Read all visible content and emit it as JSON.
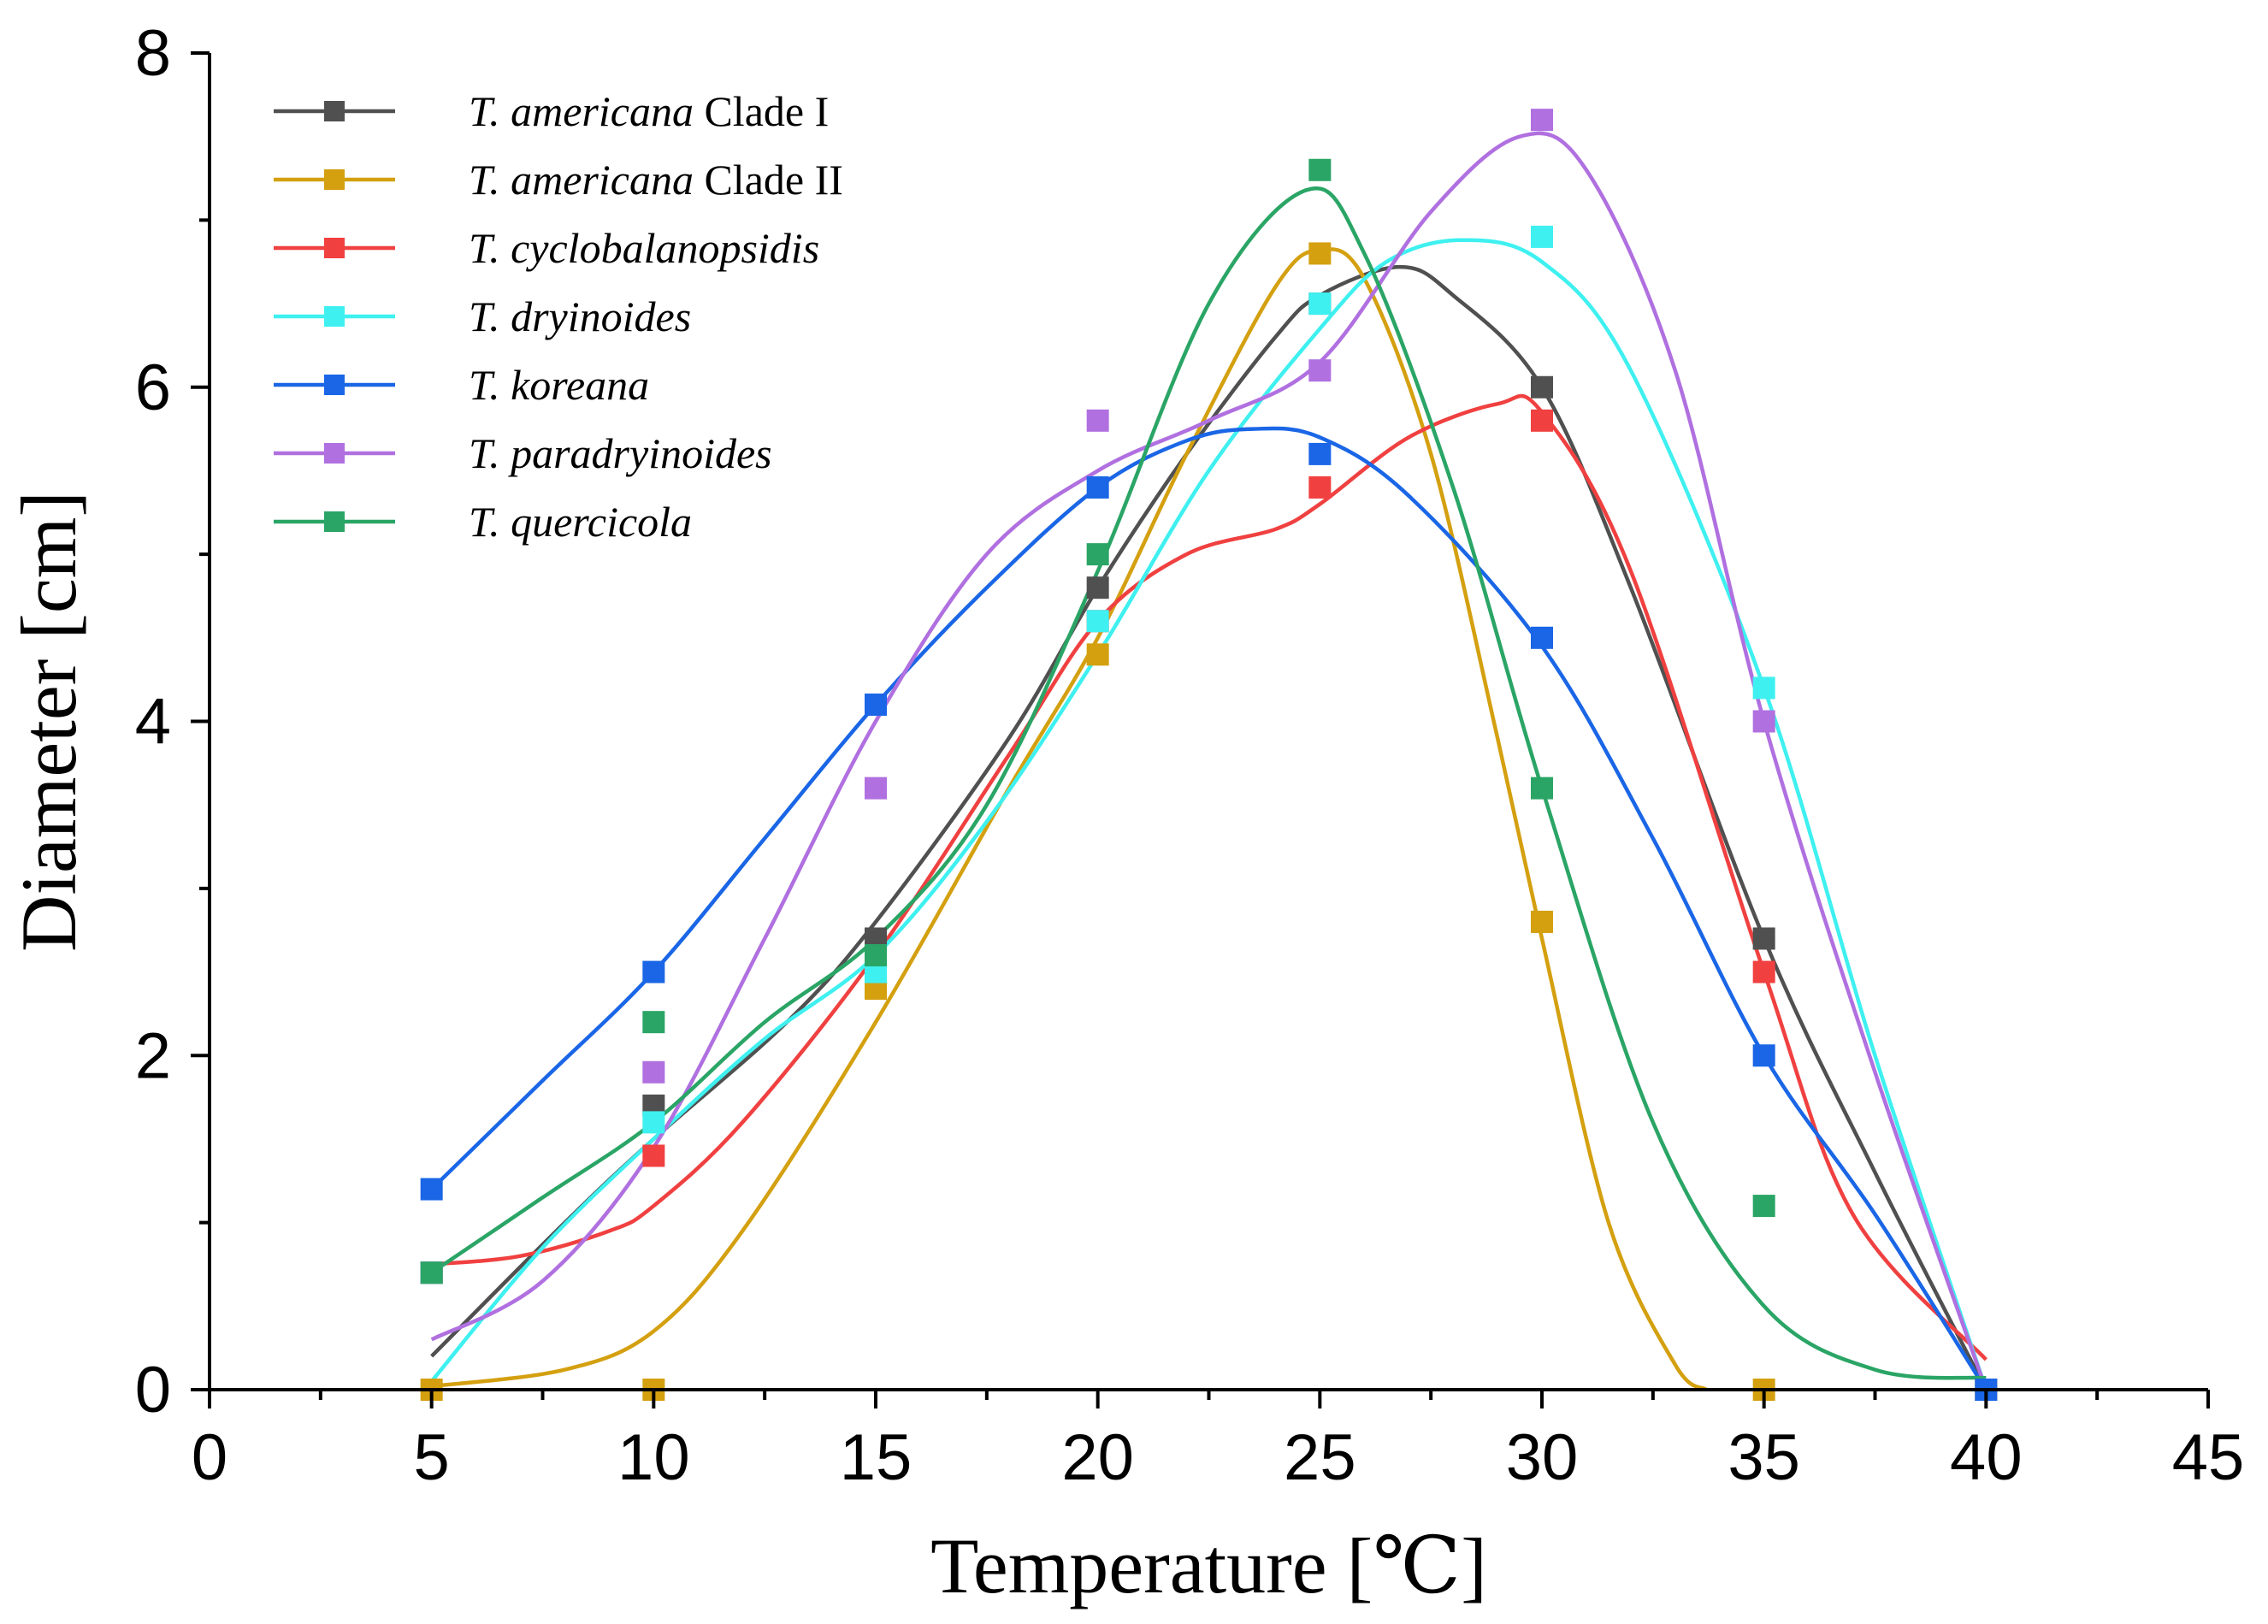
{
  "chart_data": {
    "type": "scatter",
    "title": "",
    "xlabel": "Temperature [℃]",
    "ylabel": "Diameter [cm]",
    "xlim": [
      0,
      45
    ],
    "ylim": [
      0,
      8
    ],
    "xticks": [
      0,
      5,
      10,
      15,
      20,
      25,
      30,
      35,
      40,
      45
    ],
    "yticks": [
      0,
      2,
      4,
      6,
      8
    ],
    "x_tick_labels": [
      "0",
      "5",
      "10",
      "15",
      "20",
      "25",
      "30",
      "35",
      "40",
      "45"
    ],
    "y_tick_labels": [
      "0",
      "2",
      "4",
      "6",
      "8"
    ],
    "legend_position": "top-left",
    "fit": "smooth curve through points (non-linear fit)",
    "series": [
      {
        "name": "T. americana Clade I",
        "species": "T. americana",
        "suffix": " Clade I",
        "color": "#505050",
        "x": [
          5,
          10,
          15,
          20,
          25,
          30,
          35,
          40
        ],
        "values": [
          0.7,
          1.7,
          2.7,
          4.8,
          6.5,
          6.0,
          2.7,
          0.0
        ],
        "fit_x": [
          5,
          8,
          10,
          13,
          15,
          18,
          20,
          22,
          24,
          25,
          26.8,
          28,
          30,
          32,
          35,
          37.5,
          40
        ],
        "fit_y": [
          0.2,
          1.0,
          1.5,
          2.2,
          2.8,
          3.9,
          4.8,
          5.6,
          6.3,
          6.55,
          6.72,
          6.55,
          6.0,
          4.8,
          2.7,
          1.3,
          0.0
        ]
      },
      {
        "name": "T. americana Clade II",
        "species": "T. americana",
        "suffix": " Clade II",
        "color": "#d4a010",
        "x": [
          5,
          10,
          15,
          20,
          25,
          30,
          35,
          40
        ],
        "values": [
          0.0,
          0.0,
          2.4,
          4.4,
          6.8,
          2.8,
          0.0,
          0.0
        ],
        "fit_x": [
          5,
          8,
          10,
          12,
          15,
          18,
          20,
          22,
          24,
          25,
          26,
          27.5,
          29,
          30,
          31.5,
          33,
          33.7
        ],
        "fit_y": [
          0.02,
          0.12,
          0.35,
          0.95,
          2.2,
          3.6,
          4.5,
          5.6,
          6.6,
          6.82,
          6.65,
          5.6,
          3.9,
          2.7,
          1.0,
          0.15,
          0.0
        ]
      },
      {
        "name": "T. cyclobalanopsidis",
        "species": "T. cyclobalanopsidis",
        "suffix": "",
        "color": "#f04040",
        "x": [
          5,
          10,
          15,
          20,
          25,
          30,
          35
        ],
        "values": [
          0.7,
          1.4,
          2.5,
          4.6,
          5.4,
          5.8,
          2.5
        ],
        "fit_x": [
          5,
          7,
          9,
          10,
          12,
          15,
          18,
          20,
          22,
          24,
          25,
          27,
          29,
          30,
          32,
          35,
          37,
          40
        ],
        "fit_y": [
          0.75,
          0.8,
          0.95,
          1.1,
          1.6,
          2.6,
          3.8,
          4.6,
          5.0,
          5.15,
          5.3,
          5.7,
          5.9,
          5.85,
          4.9,
          2.5,
          1.05,
          0.18
        ]
      },
      {
        "name": "T. dryinoides",
        "species": "T. dryinoides",
        "suffix": "",
        "color": "#3ff0f0",
        "x": [
          5,
          10,
          15,
          20,
          25,
          30,
          35
        ],
        "values": [
          0.7,
          1.6,
          2.5,
          4.6,
          6.5,
          6.9,
          4.2
        ],
        "fit_x": [
          5,
          7.5,
          10,
          12.5,
          15,
          17.5,
          20,
          22.5,
          25,
          26.5,
          28.2,
          30,
          32,
          35,
          37.5,
          40
        ],
        "fit_y": [
          0.05,
          0.85,
          1.5,
          2.1,
          2.6,
          3.4,
          4.4,
          5.5,
          6.35,
          6.75,
          6.88,
          6.75,
          6.1,
          4.2,
          2.0,
          0.0
        ]
      },
      {
        "name": "T. koreana",
        "species": "T. koreana",
        "suffix": "",
        "color": "#1a66e6",
        "x": [
          5,
          10,
          15,
          20,
          25,
          30,
          35,
          40
        ],
        "values": [
          1.2,
          2.5,
          4.1,
          5.4,
          5.6,
          4.5,
          2.0,
          0.0
        ],
        "fit_x": [
          5,
          7.5,
          10,
          12.5,
          15,
          17.5,
          20,
          22,
          23.5,
          25,
          27,
          30,
          32.5,
          35,
          37.5,
          40
        ],
        "fit_y": [
          1.2,
          1.85,
          2.5,
          3.3,
          4.1,
          4.8,
          5.4,
          5.68,
          5.75,
          5.7,
          5.35,
          4.45,
          3.3,
          2.0,
          1.05,
          0.0
        ]
      },
      {
        "name": "T. paradryinoides",
        "species": "T. paradryinoides",
        "suffix": "",
        "color": "#b070e0",
        "x": [
          5,
          10,
          15,
          20,
          25,
          30,
          35
        ],
        "values": [
          0.7,
          1.9,
          3.6,
          5.8,
          6.1,
          7.6,
          4.0
        ],
        "fit_x": [
          5,
          7.5,
          10,
          12.5,
          15,
          17.5,
          20,
          22.5,
          25,
          27.5,
          29.5,
          31,
          33,
          35,
          37.5,
          40
        ],
        "fit_y": [
          0.3,
          0.65,
          1.45,
          2.7,
          4.0,
          5.0,
          5.5,
          5.8,
          6.15,
          7.05,
          7.5,
          7.3,
          6.1,
          4.0,
          1.9,
          0.0
        ]
      },
      {
        "name": "T. quercicola",
        "species": "T. quercicola",
        "suffix": "",
        "color": "#2aa566",
        "x": [
          5,
          10,
          15,
          20,
          25,
          30,
          35
        ],
        "values": [
          0.7,
          2.2,
          2.6,
          5.0,
          7.3,
          3.6,
          1.1
        ],
        "fit_x": [
          5,
          7.5,
          10,
          12.5,
          15,
          17.5,
          20,
          22.5,
          24.7,
          26,
          28,
          30,
          32.5,
          35,
          37.5,
          40
        ],
        "fit_y": [
          0.7,
          1.15,
          1.6,
          2.2,
          2.7,
          3.5,
          4.9,
          6.5,
          7.18,
          6.8,
          5.4,
          3.6,
          1.6,
          0.5,
          0.12,
          0.07
        ]
      }
    ]
  }
}
